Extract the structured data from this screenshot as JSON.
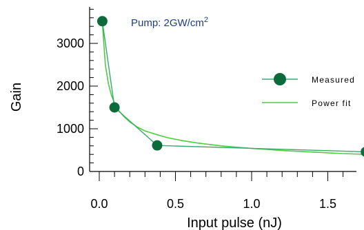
{
  "chart_data": {
    "type": "scatter",
    "xlabel": "Input pulse (nJ)",
    "ylabel": "Gain",
    "xlim": [
      0,
      1.75
    ],
    "ylim": [
      0,
      3800
    ],
    "x_ticks": [
      "0.0",
      "0.5",
      "1.0",
      "1.5"
    ],
    "y_ticks": [
      "0",
      "1000",
      "2000",
      "3000"
    ],
    "annotation_main": "Pump: 2GW/cm",
    "annotation_sup": "2",
    "legend_position": "right",
    "series": [
      {
        "name": "Measured",
        "style": "line+markers",
        "color": "#0d6b3b",
        "line_color": "#3aa86a",
        "x": [
          0.02,
          0.1,
          0.38,
          1.75
        ],
        "y": [
          3520,
          1500,
          610,
          460
        ]
      },
      {
        "name": "Power fit",
        "style": "line",
        "color": "#4ccf3f",
        "x": [
          0.02,
          0.04,
          0.06,
          0.08,
          0.1,
          0.13,
          0.16,
          0.2,
          0.25,
          0.3,
          0.38,
          0.45,
          0.55,
          0.65,
          0.8,
          1.0,
          1.2,
          1.4,
          1.6,
          1.75
        ],
        "y": [
          3500,
          2500,
          2050,
          1780,
          1600,
          1420,
          1290,
          1160,
          1040,
          950,
          860,
          790,
          720,
          665,
          600,
          540,
          490,
          455,
          420,
          400
        ]
      }
    ]
  }
}
